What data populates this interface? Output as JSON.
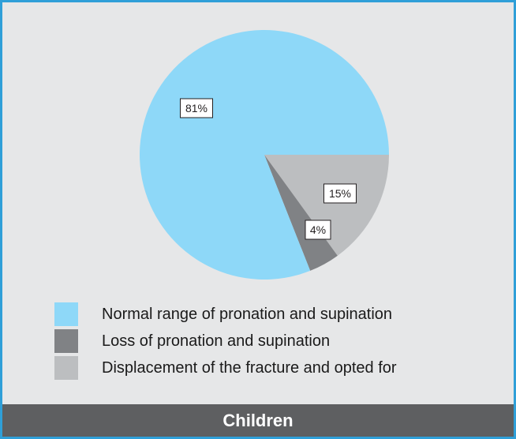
{
  "chart_data": {
    "type": "pie",
    "slices": [
      {
        "label": "Normal range of pronation and supination",
        "value": 81,
        "value_label": "81%",
        "color": "#8ed8f8"
      },
      {
        "label": "Loss of pronation and supination",
        "value": 4,
        "value_label": "4%",
        "color": "#808285"
      },
      {
        "label": "Displacement of the fracture and opted for",
        "value": 15,
        "value_label": "15%",
        "color": "#bcbec0"
      }
    ],
    "legend_position": "bottom",
    "start_direction": "right",
    "direction": "clockwise-from-displacement"
  },
  "footer": {
    "title": "Children"
  },
  "colors": {
    "border": "#2f9fd8",
    "background": "#e6e7e8",
    "footer": "#5e5f61"
  }
}
